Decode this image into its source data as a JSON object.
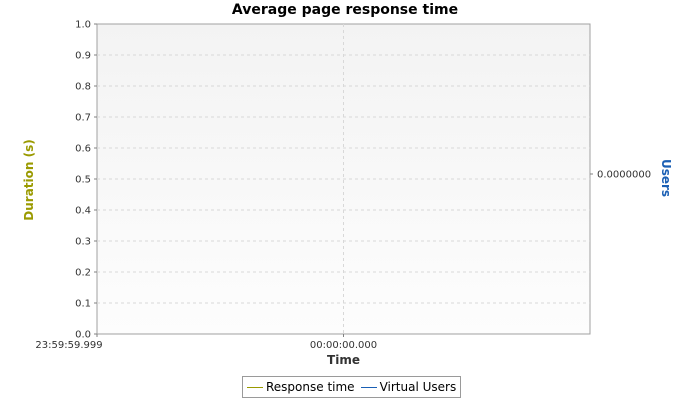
{
  "chart_data": {
    "type": "line",
    "title": "Average page response time",
    "xlabel": "Time",
    "ylabel": "Duration (s)",
    "y2label": "Users",
    "ylim": [
      0,
      1
    ],
    "yticks": [
      "0.0",
      "0.1",
      "0.2",
      "0.3",
      "0.4",
      "0.5",
      "0.6",
      "0.7",
      "0.8",
      "0.9",
      "1.0"
    ],
    "y2ticks": [
      "0.0000000"
    ],
    "xticks": [
      "23:59:59.999",
      "00:00:00.000"
    ],
    "grid": true,
    "legend_position": "bottom",
    "series": [
      {
        "name": "Response time",
        "color": "#9a9a00",
        "x": [],
        "y": []
      },
      {
        "name": "Virtual Users",
        "color": "#1a5fb4",
        "x": [],
        "y": []
      }
    ]
  }
}
